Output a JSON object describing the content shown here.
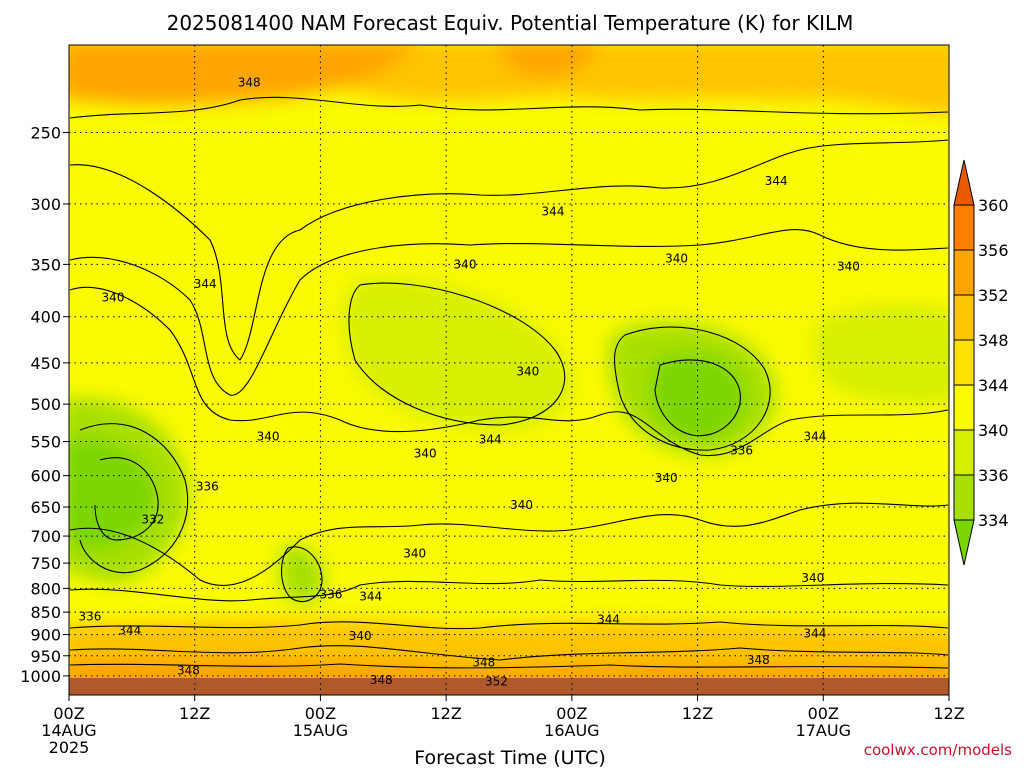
{
  "chart_data": {
    "type": "heatmap",
    "title": "2025081400 NAM Forecast Equiv. Potential Temperature (K) for KILM",
    "xlabel": "Forecast Time (UTC)",
    "ylabel": "",
    "y_axis": {
      "scale": "log",
      "inverted": true,
      "range": [
        1050,
        200
      ],
      "ticks": [
        "250",
        "300",
        "350",
        "400",
        "450",
        "500",
        "550",
        "600",
        "650",
        "700",
        "750",
        "800",
        "850",
        "900",
        "950",
        "1000"
      ]
    },
    "x_axis": {
      "range_hours": [
        0,
        84
      ],
      "ticks": [
        {
          "hour": 0,
          "lines": [
            "00Z",
            "14AUG",
            "2025"
          ]
        },
        {
          "hour": 12,
          "lines": [
            "12Z"
          ]
        },
        {
          "hour": 24,
          "lines": [
            "00Z",
            "15AUG"
          ]
        },
        {
          "hour": 36,
          "lines": [
            "12Z"
          ]
        },
        {
          "hour": 48,
          "lines": [
            "00Z",
            "16AUG"
          ]
        },
        {
          "hour": 60,
          "lines": [
            "12Z"
          ]
        },
        {
          "hour": 72,
          "lines": [
            "00Z",
            "17AUG"
          ]
        },
        {
          "hour": 84,
          "lines": [
            "12Z"
          ]
        }
      ]
    },
    "grid": true,
    "colorbar": {
      "placement": "right",
      "levels": [
        "334",
        "336",
        "340",
        "344",
        "348",
        "352",
        "356",
        "360"
      ],
      "colors": [
        "#7bd600",
        "#a8e000",
        "#d6ef00",
        "#fafa00",
        "#ffe000",
        "#ffc400",
        "#ffa400",
        "#ff8000",
        "#e85a00"
      ]
    },
    "contour_labels": [
      {
        "text": "348",
        "hour": 17.2,
        "p": 220
      },
      {
        "text": "344",
        "hour": 67.5,
        "p": 283
      },
      {
        "text": "344",
        "hour": 46.2,
        "p": 306
      },
      {
        "text": "340",
        "hour": 37.8,
        "p": 350
      },
      {
        "text": "340",
        "hour": 58.0,
        "p": 345
      },
      {
        "text": "340",
        "hour": 74.4,
        "p": 352
      },
      {
        "text": "344",
        "hour": 13.0,
        "p": 368
      },
      {
        "text": "340",
        "hour": 4.2,
        "p": 381
      },
      {
        "text": "340",
        "hour": 43.8,
        "p": 460
      },
      {
        "text": "340",
        "hour": 19.0,
        "p": 543
      },
      {
        "text": "344",
        "hour": 40.2,
        "p": 547
      },
      {
        "text": "340",
        "hour": 34.0,
        "p": 567
      },
      {
        "text": "336",
        "hour": 64.2,
        "p": 563
      },
      {
        "text": "344",
        "hour": 71.2,
        "p": 543
      },
      {
        "text": "340",
        "hour": 57.0,
        "p": 604
      },
      {
        "text": "336",
        "hour": 13.2,
        "p": 617
      },
      {
        "text": "340",
        "hour": 43.2,
        "p": 647
      },
      {
        "text": "332",
        "hour": 8.0,
        "p": 671
      },
      {
        "text": "340",
        "hour": 33.0,
        "p": 732
      },
      {
        "text": "340",
        "hour": 71.0,
        "p": 779
      },
      {
        "text": "336",
        "hour": 25.0,
        "p": 813
      },
      {
        "text": "344",
        "hour": 28.8,
        "p": 817
      },
      {
        "text": "336",
        "hour": 2.0,
        "p": 859
      },
      {
        "text": "344",
        "hour": 5.8,
        "p": 891
      },
      {
        "text": "344",
        "hour": 51.5,
        "p": 866
      },
      {
        "text": "344",
        "hour": 71.2,
        "p": 897
      },
      {
        "text": "340",
        "hour": 27.8,
        "p": 903
      },
      {
        "text": "348",
        "hour": 39.6,
        "p": 966
      },
      {
        "text": "348",
        "hour": 65.8,
        "p": 960
      },
      {
        "text": "348",
        "hour": 11.4,
        "p": 986
      },
      {
        "text": "348",
        "hour": 29.8,
        "p": 1010
      },
      {
        "text": "352",
        "hour": 40.8,
        "p": 1014
      }
    ]
  },
  "watermark": "coolwx.com/models"
}
